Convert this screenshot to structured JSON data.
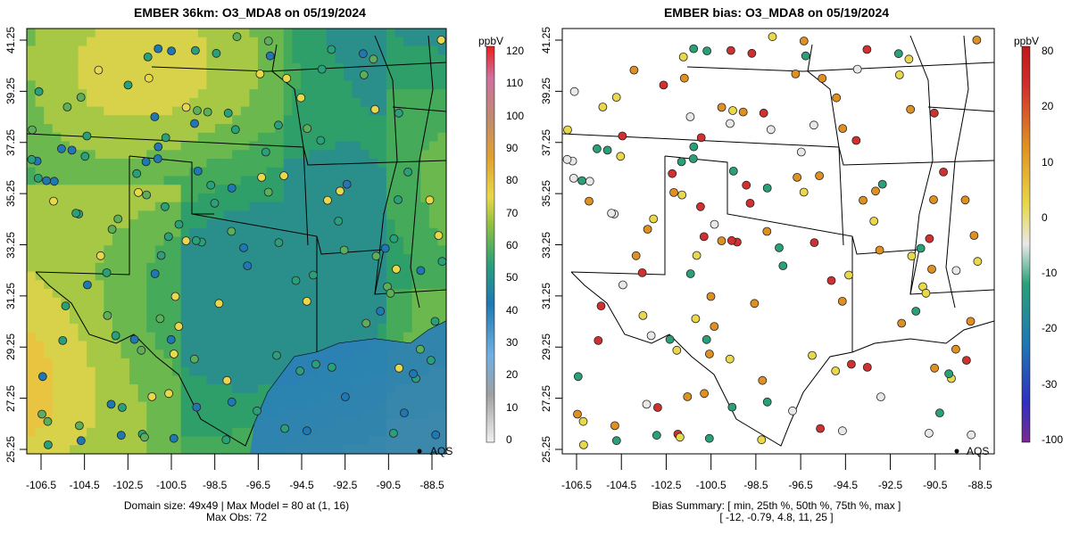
{
  "left_panel": {
    "title": "EMBER 36km: O3_MDA8 on 05/19/2024",
    "caption_line1": "Domain size: 49x49 | Max Model = 80 at (1, 16)",
    "caption_line2": "Max Obs: 72",
    "legend_label": "AQS",
    "colorbar_unit": "ppbV",
    "colorbar_ticks": [
      "120",
      "110",
      "100",
      "90",
      "80",
      "70",
      "60",
      "50",
      "40",
      "30",
      "20",
      "10",
      "0"
    ]
  },
  "right_panel": {
    "title": "EMBER bias: O3_MDA8 on 05/19/2024",
    "caption_line1": "Bias Summary: [ min, 25th %, 50th %, 75th %, max ]",
    "caption_line2": "[ -12,   -0.79,   4.8,   11,   25 ]",
    "legend_label": "AQS",
    "colorbar_unit": "ppbV",
    "colorbar_ticks": [
      "80",
      "20",
      "10",
      "0",
      "-10",
      "-20",
      "-30",
      "-100"
    ]
  },
  "axes": {
    "x_ticks": [
      "-106.5",
      "-104.5",
      "-102.5",
      "-100.5",
      "-98.5",
      "-96.5",
      "-94.5",
      "-92.5",
      "-90.5",
      "-88.5"
    ],
    "y_ticks": [
      "41.25",
      "39.25",
      "37.25",
      "35.25",
      "33.25",
      "31.25",
      "29.25",
      "27.25",
      "25.25"
    ]
  },
  "colors": {
    "low": "#1f78b4",
    "mid": "#2aa07a",
    "high": "#e8d84a",
    "peak": "#e0a030",
    "bias_neg": "#2aa07a",
    "bias_zero": "#e8e8e8",
    "bias_pos": "#e09020",
    "bias_max": "#d03030"
  },
  "chart_data": {
    "type": "map",
    "bias_summary": {
      "min": -12,
      "p25": -0.79,
      "p50": 4.8,
      "p75": 11,
      "max": 25
    },
    "max_model": 80,
    "max_obs": 72,
    "domain_size": "49x49",
    "colorbar_conc_range": [
      0,
      120
    ],
    "colorbar_bias_range": [
      -100,
      80
    ]
  }
}
